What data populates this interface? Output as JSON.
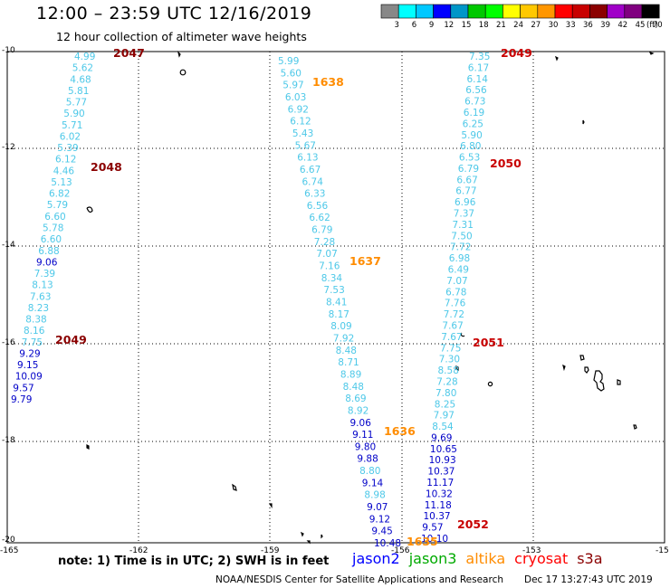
{
  "header": {
    "title": "12:00 – 23:59 UTC 12/16/2019",
    "subtitle": "12 hour collection of altimeter wave heights"
  },
  "colorbar": {
    "colors": [
      "#888888",
      "#00ffff",
      "#00c8ff",
      "#0000ff",
      "#0096c8",
      "#00c800",
      "#00ff00",
      "#ffff00",
      "#ffc800",
      "#ff9600",
      "#ff0000",
      "#c80000",
      "#8b0000",
      "#a000c8",
      "#800080",
      "#000000"
    ],
    "labels": [
      "3",
      "6",
      "9",
      "12",
      "15",
      "18",
      "21",
      "24",
      "27",
      "30",
      "33",
      "36",
      "39",
      "42",
      "45",
      "70"
    ],
    "unit": "(ft)"
  },
  "axes": {
    "y_labels": [
      "-10",
      "-12",
      "-14",
      "-16",
      "-18",
      "-20"
    ],
    "x_labels": [
      "-165",
      "-162",
      "-159",
      "-156",
      "-153",
      "-15"
    ]
  },
  "tracks": [
    {
      "label": "2047",
      "label_color": "#8b0000",
      "label_pos": "top",
      "values": [
        {
          "v": "4.99",
          "c": "#4dc8e8"
        },
        {
          "v": "5.62",
          "c": "#4dc8e8"
        },
        {
          "v": "4.68",
          "c": "#4dc8e8"
        },
        {
          "v": "5.81",
          "c": "#4dc8e8"
        },
        {
          "v": "5.77",
          "c": "#4dc8e8"
        },
        {
          "v": "5.90",
          "c": "#4dc8e8"
        },
        {
          "v": "5.71",
          "c": "#4dc8e8"
        },
        {
          "v": "6.02",
          "c": "#4dc8e8"
        },
        {
          "v": "5.39",
          "c": "#4dc8e8"
        },
        {
          "v": "6.12",
          "c": "#4dc8e8"
        },
        {
          "v": "4.46",
          "c": "#4dc8e8"
        },
        {
          "v": "5.13",
          "c": "#4dc8e8"
        },
        {
          "v": "6.82",
          "c": "#4dc8e8"
        },
        {
          "v": "5.79",
          "c": "#4dc8e8"
        },
        {
          "v": "6.60",
          "c": "#4dc8e8"
        },
        {
          "v": "5.78",
          "c": "#4dc8e8"
        },
        {
          "v": "6.60",
          "c": "#4dc8e8"
        },
        {
          "v": "6.88",
          "c": "#4dc8e8"
        },
        {
          "v": "9.06",
          "c": "#0000c8"
        },
        {
          "v": "7.39",
          "c": "#4dc8e8"
        },
        {
          "v": "8.13",
          "c": "#4dc8e8"
        },
        {
          "v": "7.63",
          "c": "#4dc8e8"
        },
        {
          "v": "8.23",
          "c": "#4dc8e8"
        },
        {
          "v": "8.38",
          "c": "#4dc8e8"
        },
        {
          "v": "8.16",
          "c": "#4dc8e8"
        },
        {
          "v": "7.75",
          "c": "#4dc8e8"
        },
        {
          "v": "9.29",
          "c": "#0000c8"
        },
        {
          "v": "9.15",
          "c": "#0000c8"
        },
        {
          "v": "10.09",
          "c": "#0000c8"
        },
        {
          "v": "9.57",
          "c": "#0000c8"
        },
        {
          "v": "9.79",
          "c": "#0000c8"
        }
      ]
    },
    {
      "label": "1638",
      "label_color": "#ff8c00",
      "label_pos": "top",
      "values": [
        {
          "v": "5.99",
          "c": "#4dc8e8"
        },
        {
          "v": "5.60",
          "c": "#4dc8e8"
        },
        {
          "v": "5.97",
          "c": "#4dc8e8"
        },
        {
          "v": "6.03",
          "c": "#4dc8e8"
        },
        {
          "v": "6.92",
          "c": "#4dc8e8"
        },
        {
          "v": "6.12",
          "c": "#4dc8e8"
        },
        {
          "v": "5.43",
          "c": "#4dc8e8"
        },
        {
          "v": "5.67",
          "c": "#4dc8e8"
        },
        {
          "v": "6.13",
          "c": "#4dc8e8"
        },
        {
          "v": "6.67",
          "c": "#4dc8e8"
        },
        {
          "v": "6.74",
          "c": "#4dc8e8"
        },
        {
          "v": "6.33",
          "c": "#4dc8e8"
        },
        {
          "v": "6.56",
          "c": "#4dc8e8"
        },
        {
          "v": "6.62",
          "c": "#4dc8e8"
        },
        {
          "v": "6.79",
          "c": "#4dc8e8"
        },
        {
          "v": "7.28",
          "c": "#4dc8e8"
        },
        {
          "v": "7.07",
          "c": "#4dc8e8"
        },
        {
          "v": "7.16",
          "c": "#4dc8e8"
        },
        {
          "v": "8.34",
          "c": "#4dc8e8"
        },
        {
          "v": "7.53",
          "c": "#4dc8e8"
        },
        {
          "v": "8.41",
          "c": "#4dc8e8"
        },
        {
          "v": "8.17",
          "c": "#4dc8e8"
        },
        {
          "v": "8.09",
          "c": "#4dc8e8"
        },
        {
          "v": "7.92",
          "c": "#4dc8e8"
        },
        {
          "v": "8.48",
          "c": "#4dc8e8"
        },
        {
          "v": "8.71",
          "c": "#4dc8e8"
        },
        {
          "v": "8.89",
          "c": "#4dc8e8"
        },
        {
          "v": "8.48",
          "c": "#4dc8e8"
        },
        {
          "v": "8.69",
          "c": "#4dc8e8"
        },
        {
          "v": "8.92",
          "c": "#4dc8e8"
        },
        {
          "v": "9.06",
          "c": "#0000c8"
        },
        {
          "v": "9.11",
          "c": "#0000c8"
        },
        {
          "v": "9.80",
          "c": "#0000c8"
        },
        {
          "v": "9.88",
          "c": "#0000c8"
        },
        {
          "v": "8.80",
          "c": "#4dc8e8"
        },
        {
          "v": "9.14",
          "c": "#0000c8"
        },
        {
          "v": "8.98",
          "c": "#4dc8e8"
        },
        {
          "v": "9.07",
          "c": "#0000c8"
        },
        {
          "v": "9.12",
          "c": "#0000c8"
        },
        {
          "v": "9.45",
          "c": "#0000c8"
        },
        {
          "v": "10.48",
          "c": "#0000c8"
        }
      ]
    },
    {
      "label": "2049",
      "label_color": "#c80000",
      "label_pos": "top",
      "values": [
        {
          "v": "7.35",
          "c": "#4dc8e8"
        },
        {
          "v": "6.17",
          "c": "#4dc8e8"
        },
        {
          "v": "6.14",
          "c": "#4dc8e8"
        },
        {
          "v": "6.56",
          "c": "#4dc8e8"
        },
        {
          "v": "6.73",
          "c": "#4dc8e8"
        },
        {
          "v": "6.19",
          "c": "#4dc8e8"
        },
        {
          "v": "6.25",
          "c": "#4dc8e8"
        },
        {
          "v": "5.90",
          "c": "#4dc8e8"
        },
        {
          "v": "6.80",
          "c": "#4dc8e8"
        },
        {
          "v": "6.53",
          "c": "#4dc8e8"
        },
        {
          "v": "6.79",
          "c": "#4dc8e8"
        },
        {
          "v": "6.67",
          "c": "#4dc8e8"
        },
        {
          "v": "6.77",
          "c": "#4dc8e8"
        },
        {
          "v": "6.96",
          "c": "#4dc8e8"
        },
        {
          "v": "7.37",
          "c": "#4dc8e8"
        },
        {
          "v": "7.31",
          "c": "#4dc8e8"
        },
        {
          "v": "7.50",
          "c": "#4dc8e8"
        },
        {
          "v": "7.72",
          "c": "#4dc8e8"
        },
        {
          "v": "6.98",
          "c": "#4dc8e8"
        },
        {
          "v": "6.49",
          "c": "#4dc8e8"
        },
        {
          "v": "7.07",
          "c": "#4dc8e8"
        },
        {
          "v": "6.78",
          "c": "#4dc8e8"
        },
        {
          "v": "7.76",
          "c": "#4dc8e8"
        },
        {
          "v": "7.72",
          "c": "#4dc8e8"
        },
        {
          "v": "7.67",
          "c": "#4dc8e8"
        },
        {
          "v": "7.67",
          "c": "#4dc8e8"
        },
        {
          "v": "7.75",
          "c": "#4dc8e8"
        },
        {
          "v": "7.30",
          "c": "#4dc8e8"
        },
        {
          "v": "8.58",
          "c": "#4dc8e8"
        },
        {
          "v": "7.28",
          "c": "#4dc8e8"
        },
        {
          "v": "7.80",
          "c": "#4dc8e8"
        },
        {
          "v": "8.25",
          "c": "#4dc8e8"
        },
        {
          "v": "7.97",
          "c": "#4dc8e8"
        },
        {
          "v": "8.54",
          "c": "#4dc8e8"
        },
        {
          "v": "9.69",
          "c": "#0000c8"
        },
        {
          "v": "10.65",
          "c": "#0000c8"
        },
        {
          "v": "10.93",
          "c": "#0000c8"
        },
        {
          "v": "10.37",
          "c": "#0000c8"
        },
        {
          "v": "11.17",
          "c": "#0000c8"
        },
        {
          "v": "10.32",
          "c": "#0000c8"
        },
        {
          "v": "11.18",
          "c": "#0000c8"
        },
        {
          "v": "10.37",
          "c": "#0000c8"
        },
        {
          "v": "9.57",
          "c": "#0000c8"
        },
        {
          "v": "10.10",
          "c": "#0000c8"
        }
      ]
    }
  ],
  "pass_labels": [
    {
      "text": "2048",
      "color": "#8b0000"
    },
    {
      "text": "2049",
      "color": "#8b0000"
    },
    {
      "text": "1637",
      "color": "#ff8c00"
    },
    {
      "text": "1636",
      "color": "#ff8c00"
    },
    {
      "text": "1635",
      "color": "#ff8c00"
    },
    {
      "text": "2050",
      "color": "#c80000"
    },
    {
      "text": "2051",
      "color": "#c80000"
    },
    {
      "text": "2052",
      "color": "#c80000"
    }
  ],
  "footer": {
    "note": "note:  1) Time is in UTC;  2) SWH is in feet",
    "satellites": [
      {
        "name": "jason2",
        "color": "#0000ff"
      },
      {
        "name": "jason3",
        "color": "#00aa00"
      },
      {
        "name": "altika",
        "color": "#ff8c00"
      },
      {
        "name": "cryosat",
        "color": "#ff0000"
      },
      {
        "name": "s3a",
        "color": "#8b0000"
      }
    ],
    "credit": "NOAA/NESDIS Center for Satellite Applications and Research",
    "timestamp": "Dec 17 13:27:43 UTC 2019"
  }
}
